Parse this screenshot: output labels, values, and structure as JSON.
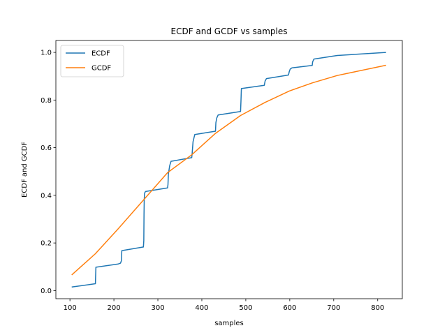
{
  "chart_data": {
    "type": "line",
    "title": "ECDF and GCDF vs samples",
    "xlabel": "samples",
    "ylabel": "ECDF and GCDF",
    "xlim": [
      68,
      856
    ],
    "ylim": [
      -0.034,
      1.05
    ],
    "xticks": [
      100,
      200,
      300,
      400,
      500,
      600,
      700,
      800
    ],
    "yticks": [
      0.0,
      0.2,
      0.4,
      0.6,
      0.8,
      1.0
    ],
    "ytick_labels": [
      "0.0",
      "0.2",
      "0.4",
      "0.6",
      "0.8",
      "1.0"
    ],
    "grid": false,
    "legend_position": "top-left",
    "series": [
      {
        "name": "ECDF",
        "color": "#1f77b4",
        "x": [
          104,
          158,
          159,
          210,
          215,
          217,
          218,
          267,
          268,
          268.5,
          269,
          269.5,
          270,
          272,
          322,
          323,
          324,
          327,
          330,
          377,
          378,
          380,
          382,
          384,
          431,
          432,
          434,
          437,
          488,
          489,
          490,
          542,
          544,
          547,
          597,
          599,
          601,
          605,
          651,
          652,
          655,
          708,
          819
        ],
        "y": [
          0.015,
          0.029,
          0.098,
          0.112,
          0.115,
          0.125,
          0.168,
          0.183,
          0.21,
          0.32,
          0.38,
          0.4,
          0.41,
          0.416,
          0.431,
          0.445,
          0.49,
          0.525,
          0.543,
          0.558,
          0.575,
          0.625,
          0.64,
          0.655,
          0.669,
          0.705,
          0.725,
          0.737,
          0.752,
          0.795,
          0.848,
          0.862,
          0.88,
          0.89,
          0.905,
          0.92,
          0.93,
          0.935,
          0.945,
          0.96,
          0.972,
          0.987,
          1.0
        ]
      },
      {
        "name": "GCDF",
        "color": "#ff7f0e",
        "x": [
          104,
          158,
          210,
          267,
          322,
          377,
          431,
          488,
          544,
          599,
          651,
          708,
          819
        ],
        "y": [
          0.066,
          0.155,
          0.26,
          0.38,
          0.495,
          0.57,
          0.66,
          0.735,
          0.79,
          0.838,
          0.872,
          0.903,
          0.946
        ]
      }
    ]
  }
}
